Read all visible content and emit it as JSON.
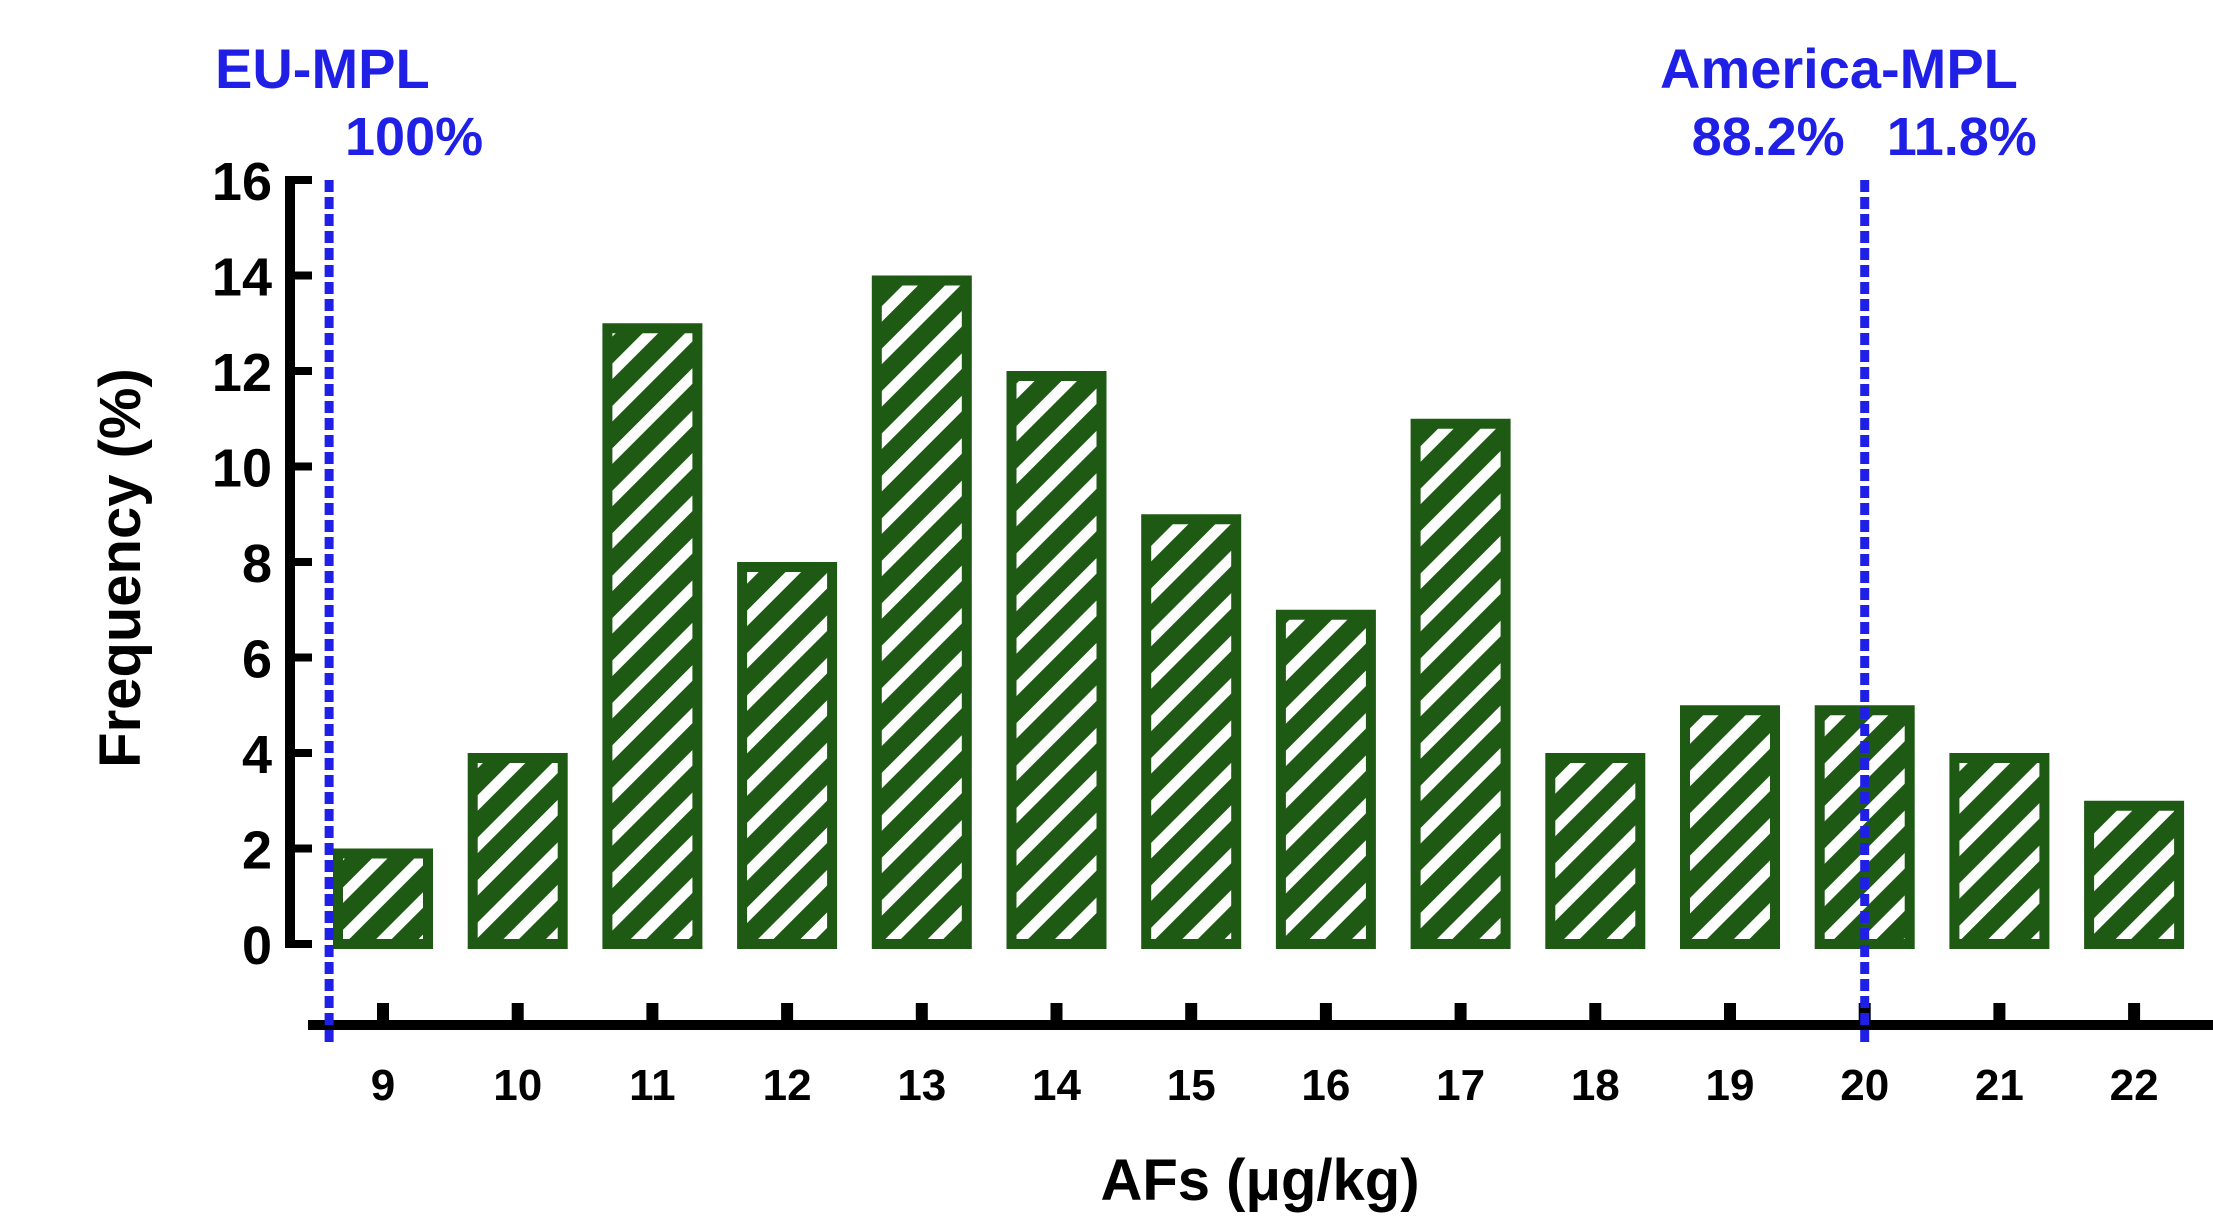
{
  "chart_data": {
    "type": "bar",
    "categories": [
      "9",
      "10",
      "11",
      "12",
      "13",
      "14",
      "15",
      "16",
      "17",
      "18",
      "19",
      "20",
      "21",
      "22"
    ],
    "values": [
      2,
      4,
      13,
      8,
      14,
      12,
      9,
      7,
      11,
      4,
      5,
      5,
      4,
      3
    ],
    "xlabel": "AFs (μg/kg)",
    "ylabel": "Frequency (%)",
    "ylim": [
      0,
      16
    ],
    "yticks": [
      0,
      2,
      4,
      6,
      8,
      10,
      12,
      14,
      16
    ],
    "grid": false,
    "bar_color": "#1e5a14",
    "bar_pattern": "diagonal-hatch",
    "reference_lines": [
      {
        "label": "EU-MPL",
        "x": 8.6,
        "annotations": [
          "100%"
        ],
        "color": "#1f1fe6"
      },
      {
        "label": "America-MPL",
        "x": 20,
        "annotations": [
          "88.2%",
          "11.8%"
        ],
        "color": "#1f1fe6"
      }
    ]
  }
}
